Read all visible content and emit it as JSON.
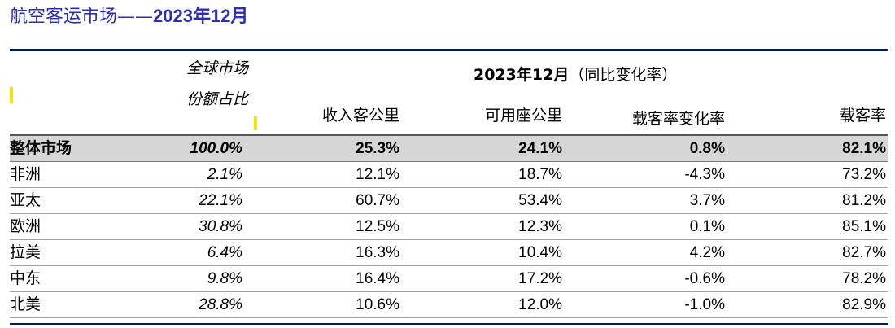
{
  "title": {
    "main": "航空客运市场——",
    "suffix": "2023年12月"
  },
  "header": {
    "share_line1": "全球市场",
    "share_line2": "份额占比",
    "period": "2023年12月",
    "period_suffix": "（同比变化率）",
    "columns": [
      "收入客公里",
      "可用座公里",
      "载客率变化率",
      "载客率"
    ]
  },
  "rows": [
    {
      "region": "整体市场",
      "share": "100.0%",
      "rpk": "25.3%",
      "ask": "24.1%",
      "plf_change": "0.8%",
      "plf": "82.1%"
    },
    {
      "region": "非洲",
      "share": "2.1%",
      "rpk": "12.1%",
      "ask": "18.7%",
      "plf_change": "-4.3%",
      "plf": "73.2%"
    },
    {
      "region": "亚太",
      "share": "22.1%",
      "rpk": "60.7%",
      "ask": "53.4%",
      "plf_change": "3.7%",
      "plf": "81.2%"
    },
    {
      "region": "欧洲",
      "share": "30.8%",
      "rpk": "12.5%",
      "ask": "12.3%",
      "plf_change": "0.1%",
      "plf": "85.1%"
    },
    {
      "region": "拉美",
      "share": "6.4%",
      "rpk": "16.3%",
      "ask": "10.4%",
      "plf_change": "4.2%",
      "plf": "82.7%"
    },
    {
      "region": "中东",
      "share": "9.8%",
      "rpk": "16.4%",
      "ask": "17.2%",
      "plf_change": "-0.6%",
      "plf": "78.2%"
    },
    {
      "region": "北美",
      "share": "28.8%",
      "rpk": "10.6%",
      "ask": "12.0%",
      "plf_change": "-1.0%",
      "plf": "82.9%"
    }
  ]
}
